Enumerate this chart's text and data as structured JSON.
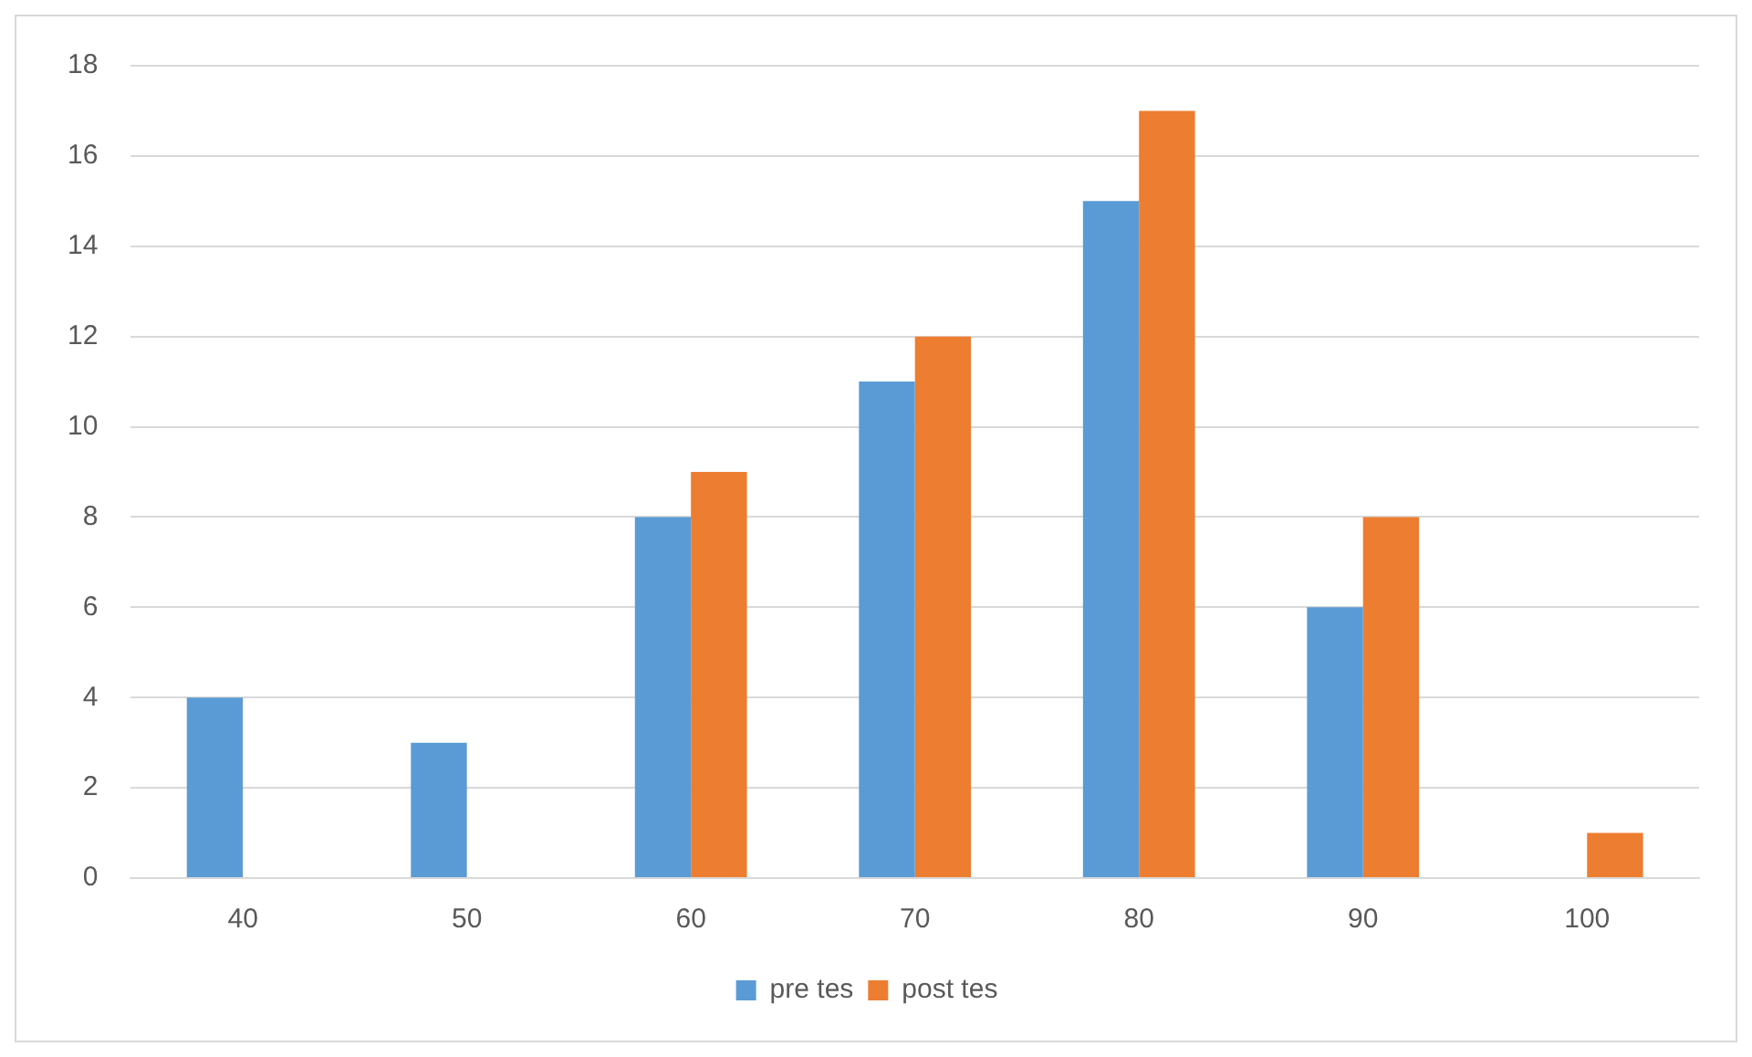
{
  "chart_data": {
    "type": "bar",
    "categories": [
      "40",
      "50",
      "60",
      "70",
      "80",
      "90",
      "100"
    ],
    "series": [
      {
        "name": "pre tes",
        "color": "#5b9bd5",
        "values": [
          4,
          3,
          8,
          11,
          15,
          6,
          0
        ]
      },
      {
        "name": "post tes",
        "color": "#ed7d31",
        "values": [
          0,
          0,
          9,
          12,
          17,
          8,
          1
        ]
      }
    ],
    "ylim": [
      0,
      18
    ],
    "yticks": [
      0,
      2,
      4,
      6,
      8,
      10,
      12,
      14,
      16,
      18
    ],
    "grid": "y",
    "legend": "bottom"
  }
}
